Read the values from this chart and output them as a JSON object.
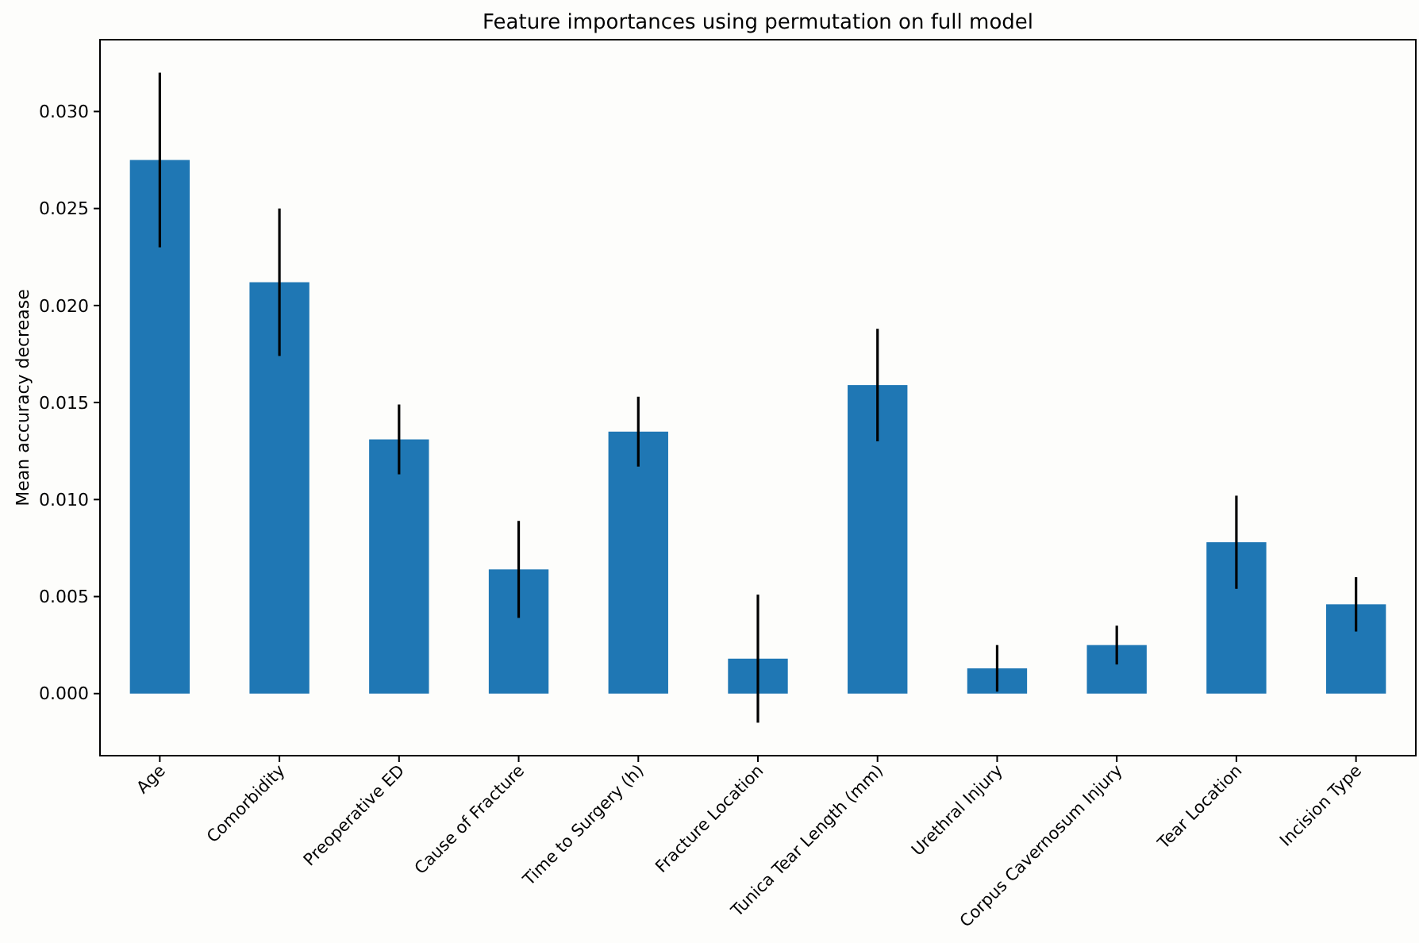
{
  "chart_data": {
    "type": "bar",
    "title": "Feature importances using permutation on full model",
    "ylabel": "Mean accuracy decrease",
    "categories": [
      "Age",
      "Comorbidity",
      "Preoperative ED",
      "Cause of Fracture",
      "Time to Surgery (h)",
      "Fracture Location",
      "Tunica Tear Length (mm)",
      "Urethral Injury",
      "Corpus Cavernosum Injury",
      "Tear Location",
      "Incision Type"
    ],
    "values": [
      0.0275,
      0.0212,
      0.0131,
      0.0064,
      0.0135,
      0.0018,
      0.0159,
      0.0013,
      0.0025,
      0.0078,
      0.0046
    ],
    "errors": [
      0.0045,
      0.0038,
      0.0018,
      0.0025,
      0.0018,
      0.0033,
      0.0029,
      0.0012,
      0.001,
      0.0024,
      0.0014
    ],
    "color": "#1f77b4",
    "ylim": [
      -0.0032,
      0.0337
    ],
    "yticks": [
      {
        "value": 0,
        "label": "0.000"
      },
      {
        "value": 0.005,
        "label": "0.005"
      },
      {
        "value": 0.01,
        "label": "0.010"
      },
      {
        "value": 0.015,
        "label": "0.015"
      },
      {
        "value": 0.02,
        "label": "0.020"
      },
      {
        "value": 0.025,
        "label": "0.025"
      },
      {
        "value": 0.03,
        "label": "0.030"
      }
    ],
    "grid": false
  }
}
